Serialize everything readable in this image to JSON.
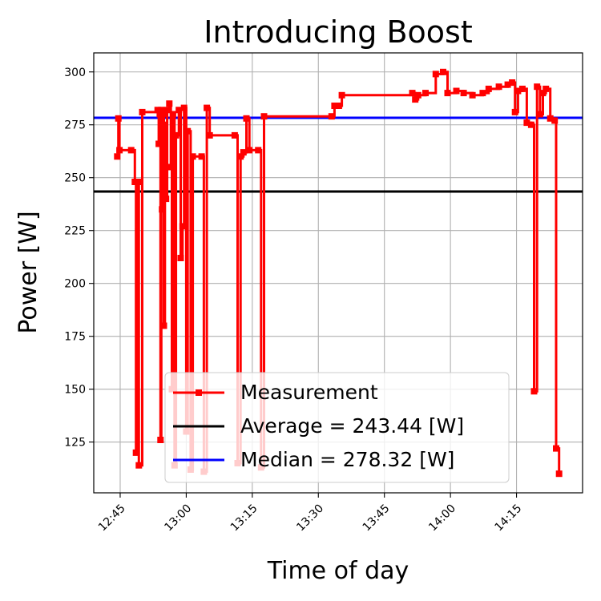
{
  "chart_data": {
    "type": "line",
    "title": "Introducing Boost",
    "xlabel": "Time of day",
    "ylabel": "Power [W]",
    "x_ticks": [
      "12:45",
      "13:00",
      "13:15",
      "13:30",
      "13:45",
      "14:00",
      "14:15"
    ],
    "y_ticks": [
      125,
      150,
      175,
      200,
      225,
      250,
      275,
      300
    ],
    "xlim": [
      "12:39",
      "14:30"
    ],
    "ylim": [
      101,
      309
    ],
    "grid": true,
    "legend_position": "lower-center",
    "series": [
      {
        "name": "Measurement",
        "color": "#ff0000",
        "style": "steps-post",
        "marker": "square",
        "points": [
          [
            "12:44:20",
            260
          ],
          [
            "12:44:35",
            278
          ],
          [
            "12:44:50",
            263
          ],
          [
            "12:47:30",
            263
          ],
          [
            "12:48:20",
            248
          ],
          [
            "12:48:35",
            120
          ],
          [
            "12:49:00",
            248
          ],
          [
            "12:49:15",
            114
          ],
          [
            "12:50:00",
            281
          ],
          [
            "12:53:30",
            282
          ],
          [
            "12:53:45",
            266
          ],
          [
            "12:54:00",
            280
          ],
          [
            "12:54:10",
            126
          ],
          [
            "12:54:20",
            282
          ],
          [
            "12:54:30",
            235
          ],
          [
            "12:54:45",
            280
          ],
          [
            "12:54:55",
            180
          ],
          [
            "12:55:10",
            275
          ],
          [
            "12:55:25",
            240
          ],
          [
            "12:55:40",
            282
          ],
          [
            "12:56:10",
            285
          ],
          [
            "12:56:30",
            255
          ],
          [
            "12:56:45",
            150
          ],
          [
            "12:57:00",
            280
          ],
          [
            "12:57:20",
            114
          ],
          [
            "12:57:40",
            270
          ],
          [
            "12:58:20",
            282
          ],
          [
            "12:58:45",
            212
          ],
          [
            "12:59:10",
            227
          ],
          [
            "12:59:30",
            283
          ],
          [
            "13:00:00",
            130
          ],
          [
            "13:00:20",
            272
          ],
          [
            "13:01:00",
            112
          ],
          [
            "13:01:30",
            260
          ],
          [
            "13:03:30",
            260
          ],
          [
            "13:04:00",
            111
          ],
          [
            "13:04:40",
            283
          ],
          [
            "13:05:20",
            270
          ],
          [
            "13:11:00",
            270
          ],
          [
            "13:11:40",
            115
          ],
          [
            "13:12:20",
            260
          ],
          [
            "13:13:00",
            262
          ],
          [
            "13:13:40",
            278
          ],
          [
            "13:14:20",
            263
          ],
          [
            "13:16:20",
            263
          ],
          [
            "13:17:00",
            113
          ],
          [
            "13:17:40",
            279
          ],
          [
            "13:33:00",
            279
          ],
          [
            "13:33:40",
            284
          ],
          [
            "13:34:40",
            284
          ],
          [
            "13:35:20",
            289
          ],
          [
            "13:51:20",
            290
          ],
          [
            "13:52:00",
            287
          ],
          [
            "13:52:40",
            289
          ],
          [
            "13:54:20",
            290
          ],
          [
            "13:56:40",
            299
          ],
          [
            "13:58:20",
            300
          ],
          [
            "13:59:20",
            290
          ],
          [
            "14:01:20",
            291
          ],
          [
            "14:03:00",
            290
          ],
          [
            "14:05:00",
            289
          ],
          [
            "14:07:20",
            290
          ],
          [
            "14:08:40",
            292
          ],
          [
            "14:11:00",
            293
          ],
          [
            "14:13:00",
            294
          ],
          [
            "14:14:00",
            295
          ],
          [
            "14:14:40",
            281
          ],
          [
            "14:15:20",
            291
          ],
          [
            "14:16:20",
            292
          ],
          [
            "14:17:20",
            276
          ],
          [
            "14:18:20",
            275
          ],
          [
            "14:19:00",
            149
          ],
          [
            "14:19:40",
            293
          ],
          [
            "14:20:20",
            280
          ],
          [
            "14:21:00",
            290
          ],
          [
            "14:21:40",
            292
          ],
          [
            "14:22:40",
            278
          ],
          [
            "14:23:40",
            277
          ],
          [
            "14:24:00",
            122
          ],
          [
            "14:24:40",
            110
          ]
        ]
      },
      {
        "name": "Average = 243.44 [W]",
        "color": "#000000",
        "style": "hline",
        "y": 243.44
      },
      {
        "name": "Median = 278.32 [W]",
        "color": "#0000ff",
        "style": "hline",
        "y": 278.32
      }
    ]
  }
}
